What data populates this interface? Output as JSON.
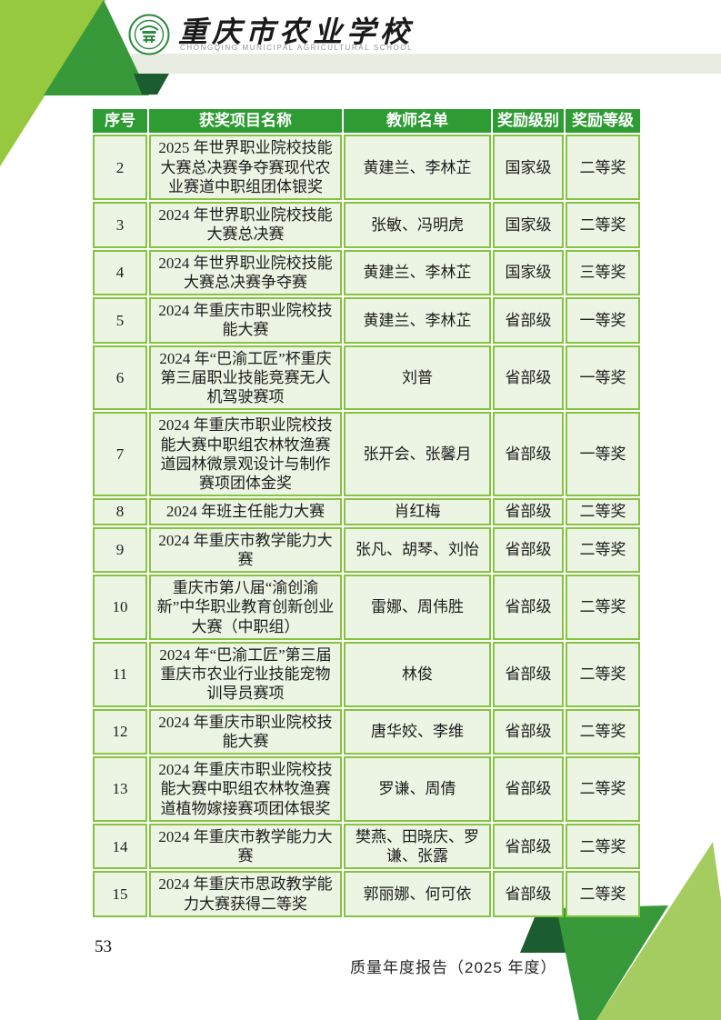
{
  "header": {
    "school_name_zh": "重庆市农业学校",
    "school_name_en": "CHONGQING MUNICIPAL AGRICULTURAL SCHOOL"
  },
  "table": {
    "columns": [
      "序号",
      "获奖项目名称",
      "教师名单",
      "奖励级别",
      "奖励等级"
    ],
    "rows": [
      {
        "no": "2",
        "project": "2025 年世界职业院校技能大赛总决赛争夺赛现代农业赛道中职组团体银奖",
        "teachers": "黄建兰、李林芷",
        "level": "国家级",
        "grade": "二等奖"
      },
      {
        "no": "3",
        "project": "2024 年世界职业院校技能大赛总决赛",
        "teachers": "张敏、冯明虎",
        "level": "国家级",
        "grade": "二等奖"
      },
      {
        "no": "4",
        "project": "2024 年世界职业院校技能大赛总决赛争夺赛",
        "teachers": "黄建兰、李林芷",
        "level": "国家级",
        "grade": "三等奖"
      },
      {
        "no": "5",
        "project": "2024 年重庆市职业院校技能大赛",
        "teachers": "黄建兰、李林芷",
        "level": "省部级",
        "grade": "一等奖"
      },
      {
        "no": "6",
        "project": "2024 年“巴渝工匠”杯重庆第三届职业技能竞赛无人机驾驶赛项",
        "teachers": "刘普",
        "level": "省部级",
        "grade": "一等奖"
      },
      {
        "no": "7",
        "project": "2024 年重庆市职业院校技能大赛中职组农林牧渔赛道园林微景观设计与制作赛项团体金奖",
        "teachers": "张开会、张馨月",
        "level": "省部级",
        "grade": "一等奖"
      },
      {
        "no": "8",
        "project": "2024 年班主任能力大赛",
        "teachers": "肖红梅",
        "level": "省部级",
        "grade": "二等奖"
      },
      {
        "no": "9",
        "project": "2024 年重庆市教学能力大赛",
        "teachers": "张凡、胡琴、刘怡",
        "level": "省部级",
        "grade": "二等奖"
      },
      {
        "no": "10",
        "project": "重庆市第八届“渝创渝新”中华职业教育创新创业大赛（中职组）",
        "teachers": "雷娜、周伟胜",
        "level": "省部级",
        "grade": "二等奖"
      },
      {
        "no": "11",
        "project": "2024 年“巴渝工匠”第三届重庆市农业行业技能宠物训导员赛项",
        "teachers": "林俊",
        "level": "省部级",
        "grade": "二等奖"
      },
      {
        "no": "12",
        "project": "2024 年重庆市职业院校技能大赛",
        "teachers": "唐华姣、李维",
        "level": "省部级",
        "grade": "二等奖"
      },
      {
        "no": "13",
        "project": "2024 年重庆市职业院校技能大赛中职组农林牧渔赛道植物嫁接赛项团体银奖",
        "teachers": "罗谦、周倩",
        "level": "省部级",
        "grade": "二等奖"
      },
      {
        "no": "14",
        "project": "2024 年重庆市教学能力大赛",
        "teachers": "樊燕、田晓庆、罗谦、张露",
        "level": "省部级",
        "grade": "二等奖"
      },
      {
        "no": "15",
        "project": "2024 年重庆市思政教学能力大赛获得二等奖",
        "teachers": "郭丽娜、何可依",
        "level": "省部级",
        "grade": "二等奖"
      }
    ]
  },
  "footer": {
    "page_number": "53",
    "report_title": "质量年度报告（2025 年度）"
  },
  "colors": {
    "header_green": "#2e9b33",
    "cell_bg": "#ecf5e3",
    "grid_green": "#85c340",
    "lime_top_left": "#96c93d",
    "lime_bottom_right": "#a4cc60",
    "medium_green": "#38993a",
    "dark_forest": "#1b5c30",
    "band_grey": "#e8ece1"
  }
}
